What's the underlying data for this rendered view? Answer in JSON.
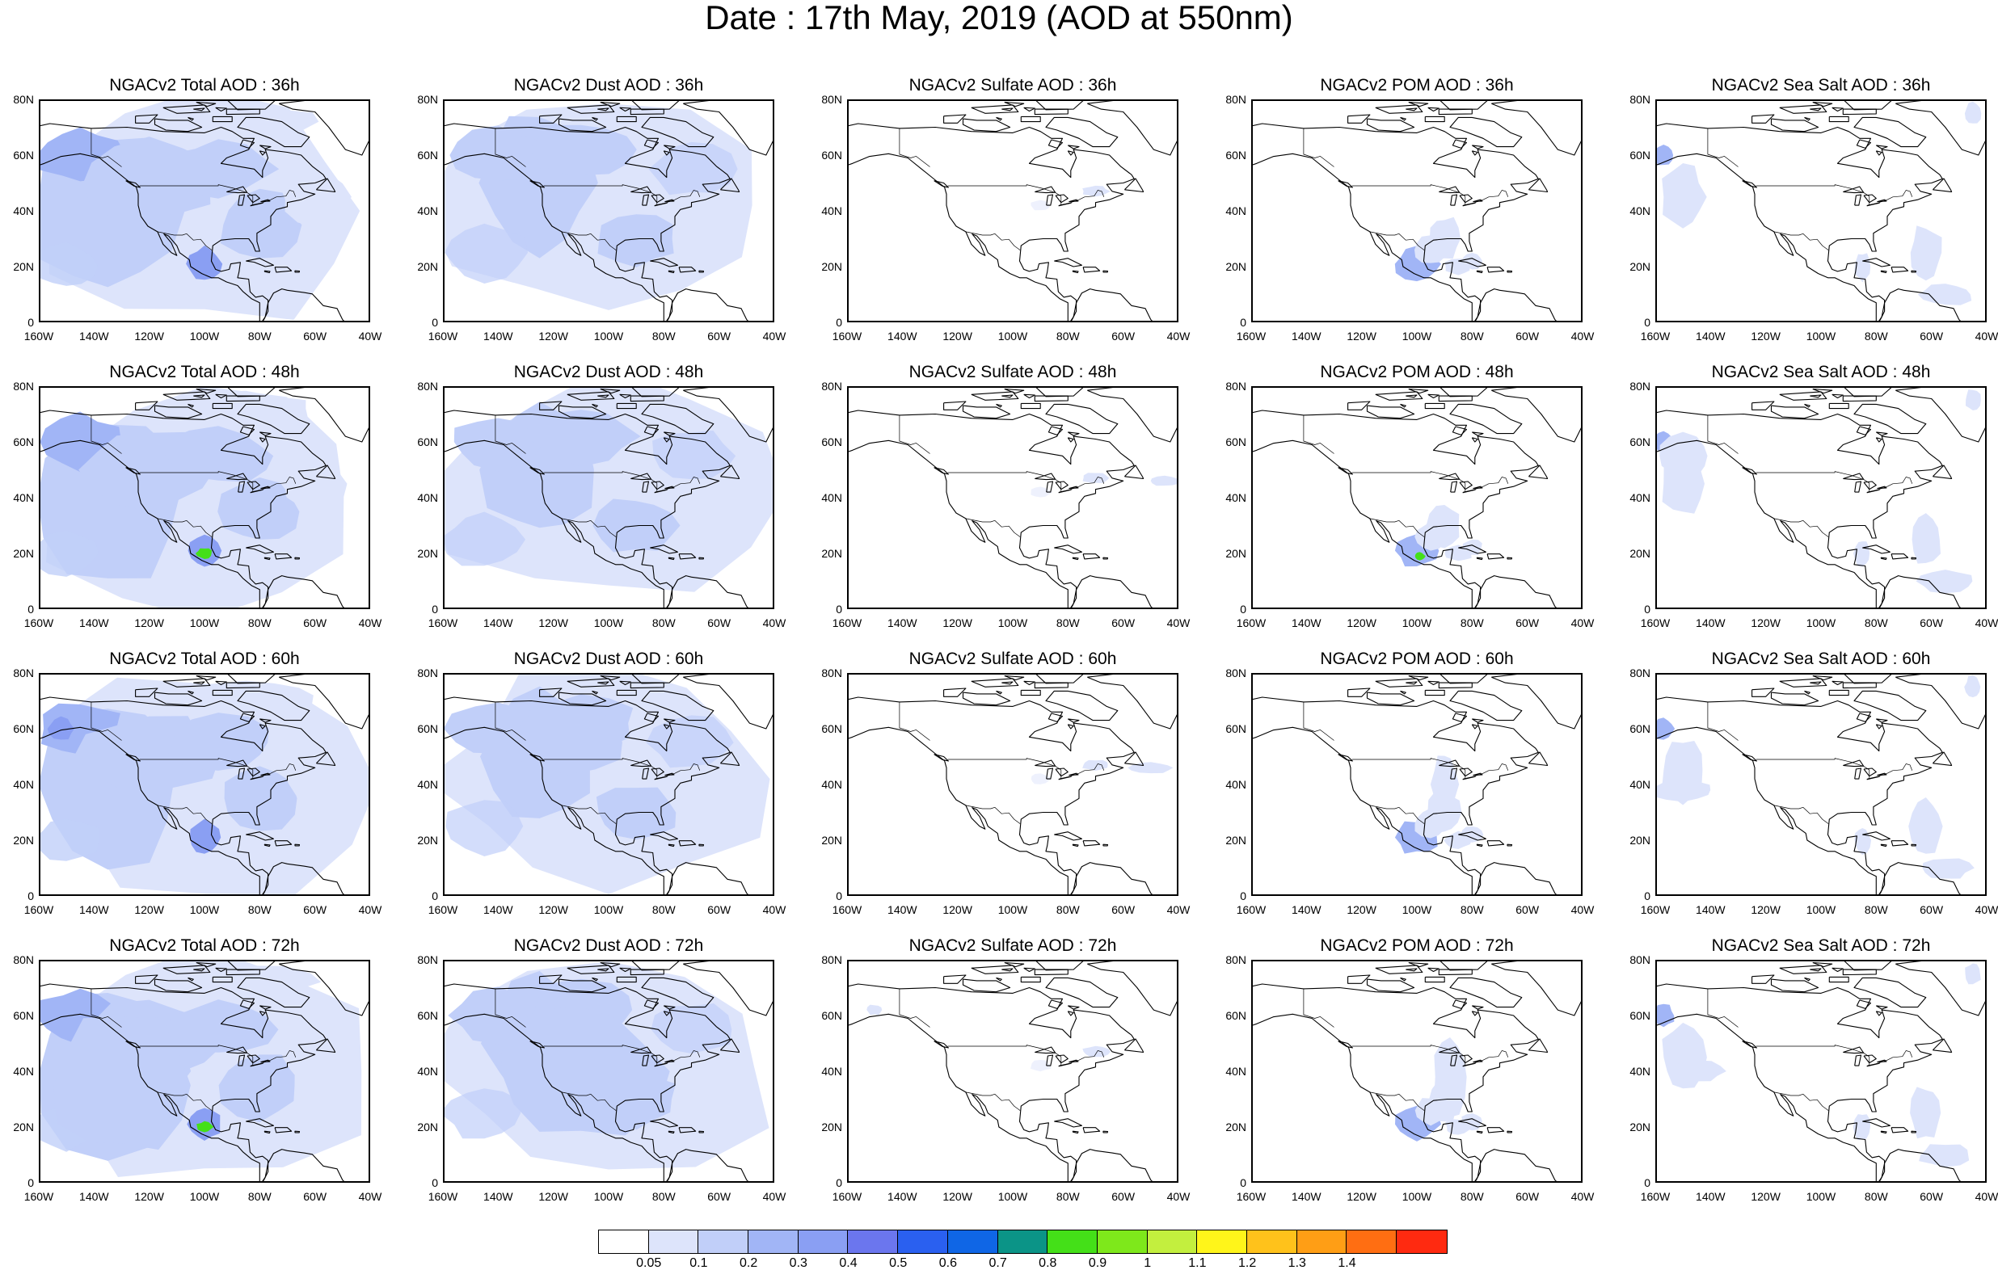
{
  "title": "Date : 17th May, 2019 (AOD at 550nm)",
  "panel_titles": [
    [
      "NGACv2 Total AOD : 36h",
      "NGACv2 Dust AOD : 36h",
      "NGACv2 Sulfate AOD : 36h",
      "NGACv2 POM AOD : 36h",
      "NGACv2 Sea Salt AOD : 36h"
    ],
    [
      "NGACv2 Total AOD : 48h",
      "NGACv2 Dust AOD : 48h",
      "NGACv2 Sulfate AOD : 48h",
      "NGACv2 POM AOD : 48h",
      "NGACv2 Sea Salt AOD : 48h"
    ],
    [
      "NGACv2 Total AOD : 60h",
      "NGACv2 Dust AOD : 60h",
      "NGACv2 Sulfate AOD : 60h",
      "NGACv2 POM AOD : 60h",
      "NGACv2 Sea Salt AOD : 60h"
    ],
    [
      "NGACv2 Total AOD : 72h",
      "NGACv2 Dust AOD : 72h",
      "NGACv2 Sulfate AOD : 72h",
      "NGACv2 POM AOD : 72h",
      "NGACv2 Sea Salt  AOD : 72h"
    ]
  ],
  "panel_kinds": [
    "total",
    "dust",
    "sulfate",
    "pom",
    "seasalt"
  ],
  "lat_ticks": [
    "80N",
    "60N",
    "40N",
    "20N",
    "0"
  ],
  "lon_ticks": [
    "160W",
    "140W",
    "120W",
    "100W",
    "80W",
    "60W",
    "40W"
  ],
  "colorbar": {
    "colors": [
      "#ffffff",
      "#dde4fb",
      "#c1cff9",
      "#a1b5f6",
      "#8a9ff3",
      "#6b76ee",
      "#2a60f0",
      "#0f66e6",
      "#0b9487",
      "#44e018",
      "#7ee81b",
      "#c3ef3e",
      "#fff51a",
      "#ffc21b",
      "#ff9e15",
      "#ff6e12",
      "#ff2a10"
    ],
    "labels": [
      "0.05",
      "0.1",
      "0.2",
      "0.3",
      "0.4",
      "0.5",
      "0.6",
      "0.7",
      "0.8",
      "0.9",
      "1",
      "1.1",
      "1.2",
      "1.3",
      "1.4"
    ]
  }
}
